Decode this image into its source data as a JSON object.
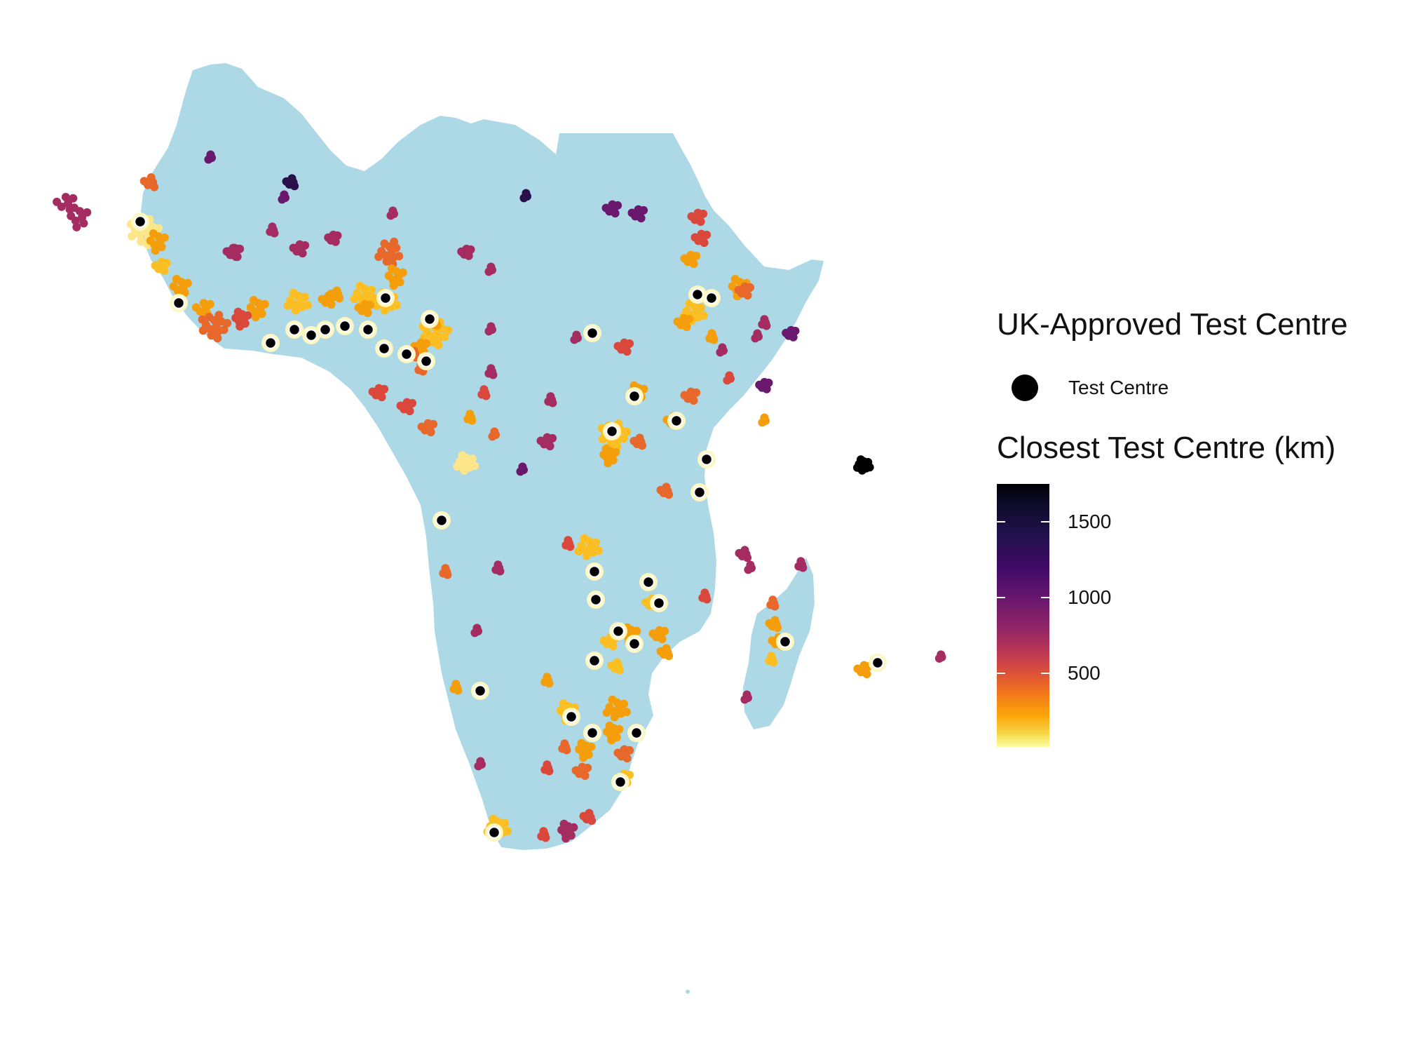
{
  "map": {
    "land_color": "#add8e6",
    "test_centre_color": "#000000",
    "palette": "inferno"
  },
  "legend": {
    "centre_title": "UK-Approved Test Centre",
    "centre_key_label": "Test Centre",
    "distance_title": "Closest Test Centre (km)",
    "colorbar_ticks": [
      "1500",
      "1000",
      "500"
    ]
  }
}
